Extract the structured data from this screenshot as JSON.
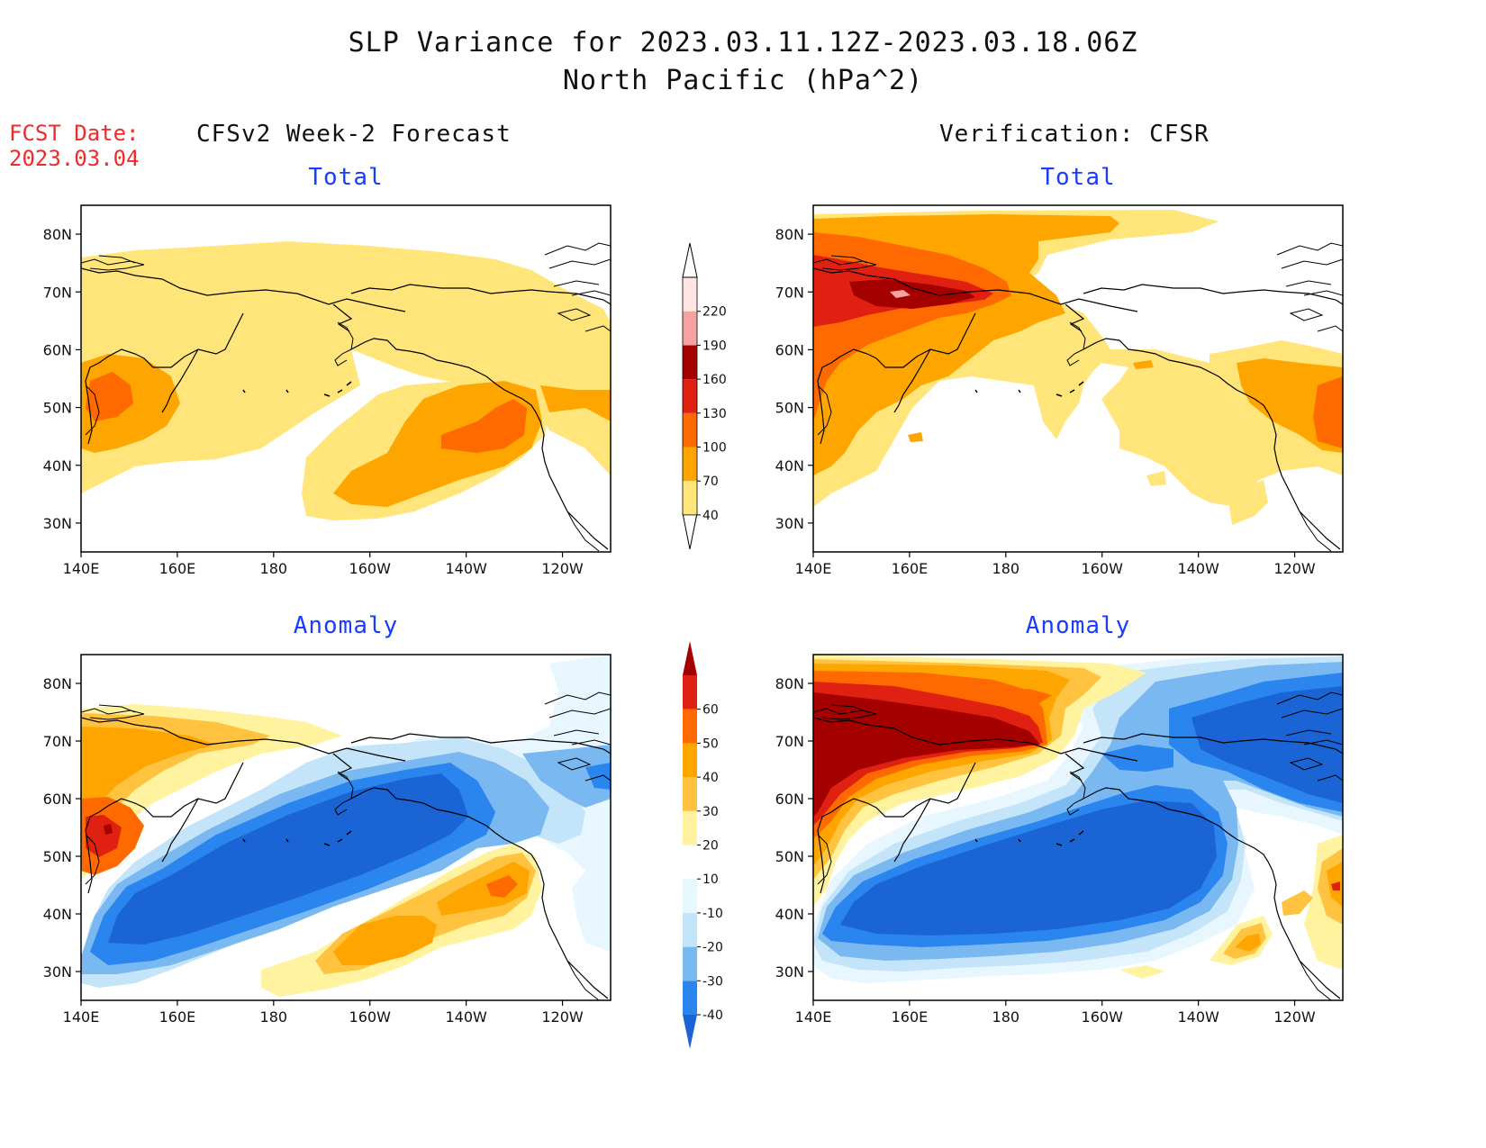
{
  "header": {
    "title_line1": "SLP Variance for 2023.03.11.12Z-2023.03.18.06Z",
    "title_line2": "North Pacific (hPa^2)",
    "fcst_label": "FCST Date:",
    "fcst_date": "2023.03.04"
  },
  "columns": {
    "left": "CFSv2 Week-2 Forecast",
    "right": "Verification: CFSR"
  },
  "panels": {
    "total_label": "Total",
    "anomaly_label": "Anomaly"
  },
  "map": {
    "lat_labels": [
      "80N",
      "70N",
      "60N",
      "50N",
      "40N",
      "30N"
    ],
    "lon_labels": [
      "140E",
      "160E",
      "180",
      "160W",
      "140W",
      "120W"
    ],
    "lat_range": [
      25,
      85
    ],
    "lon_range": [
      140,
      250
    ]
  },
  "colorbar_total": {
    "levels": [
      "40",
      "70",
      "100",
      "130",
      "160",
      "190",
      "220"
    ],
    "colors": [
      "#ffe57a",
      "#ffa500",
      "#ff6a00",
      "#e02010",
      "#a50000",
      "#f4a2a2",
      "#ffe4e4"
    ]
  },
  "colorbar_anomaly": {
    "levels": [
      "-40",
      "-30",
      "-20",
      "-10",
      "10",
      "20",
      "30",
      "40",
      "50",
      "60"
    ],
    "colors": [
      "#1a64d6",
      "#2a85ee",
      "#7ab8f2",
      "#c4e4fa",
      "#e8f6ff",
      "#ffffff",
      "#fff3a0",
      "#ffc340",
      "#ffa500",
      "#ff6a00",
      "#e02010",
      "#a50000"
    ]
  }
}
